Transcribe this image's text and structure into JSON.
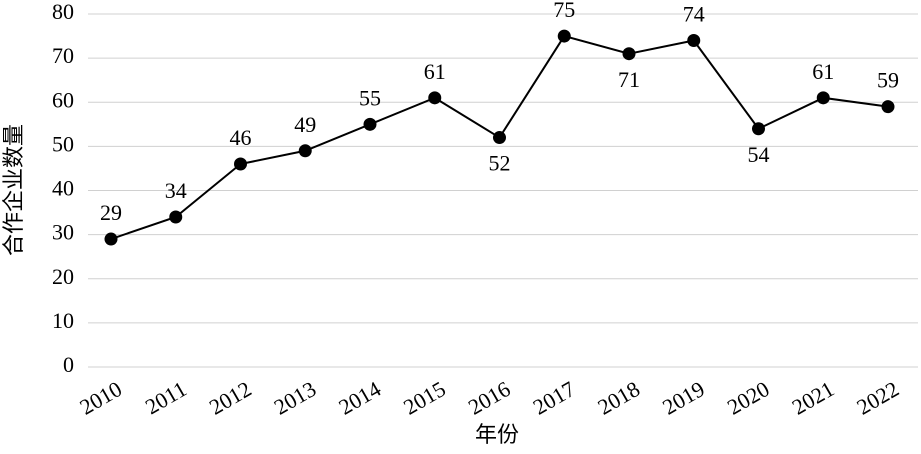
{
  "chart_data": {
    "type": "line",
    "x_label": "年份",
    "y_label": "合作企业数量",
    "categories": [
      "2010",
      "2011",
      "2012",
      "2013",
      "2014",
      "2015",
      "2016",
      "2017",
      "2018",
      "2019",
      "2020",
      "2021",
      "2022"
    ],
    "values": [
      29,
      34,
      46,
      49,
      55,
      61,
      52,
      75,
      71,
      74,
      54,
      61,
      59
    ],
    "color": "#000000",
    "ylim": [
      0,
      80
    ],
    "yticks": [
      0,
      10,
      20,
      30,
      40,
      50,
      60,
      70,
      80
    ],
    "grid": true
  }
}
